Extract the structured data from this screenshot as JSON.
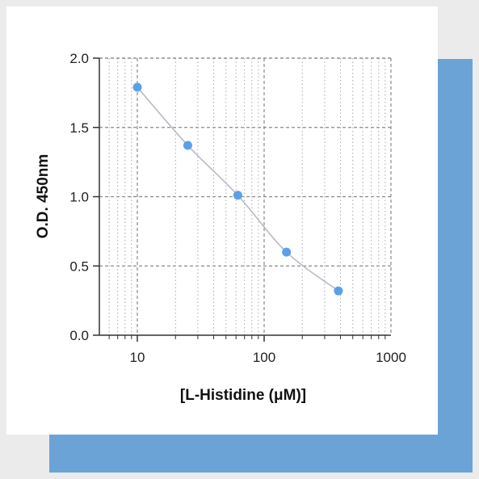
{
  "chart_data": {
    "type": "scatter",
    "title": "",
    "xlabel": "[L-Histidine (μM)]",
    "ylabel": "O.D. 450nm",
    "x_scale": "log",
    "xlim": [
      6,
      1000
    ],
    "ylim": [
      0,
      2.0
    ],
    "x_ticks": [
      10,
      100,
      1000
    ],
    "x_tick_labels": [
      "10",
      "100",
      "1000"
    ],
    "y_ticks": [
      0.0,
      0.5,
      1.0,
      1.5,
      2.0
    ],
    "y_tick_labels": [
      "0.0",
      "0.5",
      "1.0",
      "1.5",
      "2.0"
    ],
    "grid": true,
    "series": [
      {
        "x": [
          10,
          25,
          62,
          150,
          385
        ],
        "y": [
          1.79,
          1.37,
          1.01,
          0.6,
          0.32
        ],
        "marker_color": "#5aa0e8",
        "line_color": "#b9b9c4",
        "fit_curve": true
      }
    ]
  }
}
